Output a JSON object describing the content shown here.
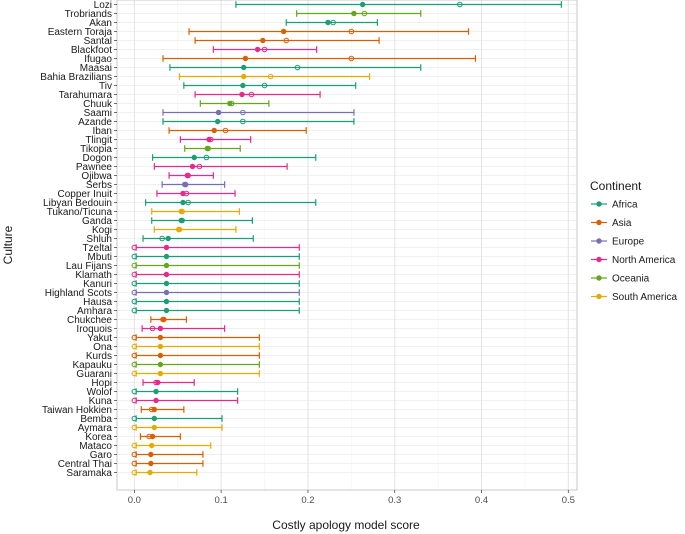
{
  "chart_data": {
    "type": "scatter",
    "xlabel": "Costly apology model score",
    "ylabel": "Culture",
    "xlim": [
      -0.02,
      0.51
    ],
    "xticks": [
      "0.0",
      "0.1",
      "0.2",
      "0.3",
      "0.4",
      "0.5"
    ],
    "xtick_values": [
      0.0,
      0.1,
      0.2,
      0.3,
      0.4,
      0.5
    ],
    "grid": true,
    "legend": {
      "title": "Continent",
      "placement": "right",
      "entries": [
        {
          "name": "Africa",
          "color": "#1b9e77"
        },
        {
          "name": "Asia",
          "color": "#d95f02"
        },
        {
          "name": "Europe",
          "color": "#7570b3"
        },
        {
          "name": "North America",
          "color": "#e7298a"
        },
        {
          "name": "Oceania",
          "color": "#66a61e"
        },
        {
          "name": "South America",
          "color": "#e6ab02"
        }
      ]
    },
    "cultures": [
      {
        "name": "Lozi",
        "continent": "Africa",
        "estimate": 0.263,
        "lo": 0.117,
        "hi": 0.492,
        "open": 0.375
      },
      {
        "name": "Trobriands",
        "continent": "Oceania",
        "estimate": 0.253,
        "lo": 0.187,
        "hi": 0.33,
        "open": 0.265
      },
      {
        "name": "Akan",
        "continent": "Africa",
        "estimate": 0.223,
        "lo": 0.175,
        "hi": 0.28,
        "open": 0.229
      },
      {
        "name": "Eastern Toraja",
        "continent": "Asia",
        "estimate": 0.172,
        "lo": 0.063,
        "hi": 0.385,
        "open": 0.25
      },
      {
        "name": "Santal",
        "continent": "Asia",
        "estimate": 0.148,
        "lo": 0.07,
        "hi": 0.282,
        "open": 0.175
      },
      {
        "name": "Blackfoot",
        "continent": "North America",
        "estimate": 0.142,
        "lo": 0.091,
        "hi": 0.21,
        "open": 0.15
      },
      {
        "name": "Ifugao",
        "continent": "Asia",
        "estimate": 0.128,
        "lo": 0.033,
        "hi": 0.393,
        "open": 0.25
      },
      {
        "name": "Maasai",
        "continent": "Africa",
        "estimate": 0.126,
        "lo": 0.041,
        "hi": 0.33,
        "open": 0.188
      },
      {
        "name": "Bahia Brazilians",
        "continent": "South America",
        "estimate": 0.126,
        "lo": 0.052,
        "hi": 0.271,
        "open": 0.157
      },
      {
        "name": "Tiv",
        "continent": "Africa",
        "estimate": 0.125,
        "lo": 0.057,
        "hi": 0.255,
        "open": 0.15
      },
      {
        "name": "Tarahumara",
        "continent": "North America",
        "estimate": 0.124,
        "lo": 0.07,
        "hi": 0.214,
        "open": 0.135
      },
      {
        "name": "Chuuk",
        "continent": "Oceania",
        "estimate": 0.11,
        "lo": 0.076,
        "hi": 0.155,
        "open": 0.112
      },
      {
        "name": "Saami",
        "continent": "Europe",
        "estimate": 0.097,
        "lo": 0.033,
        "hi": 0.253,
        "open": 0.125
      },
      {
        "name": "Azande",
        "continent": "Africa",
        "estimate": 0.096,
        "lo": 0.033,
        "hi": 0.253,
        "open": 0.125
      },
      {
        "name": "Iban",
        "continent": "Asia",
        "estimate": 0.092,
        "lo": 0.04,
        "hi": 0.198,
        "open": 0.105
      },
      {
        "name": "Tlingit",
        "continent": "North America",
        "estimate": 0.086,
        "lo": 0.053,
        "hi": 0.134,
        "open": 0.088
      },
      {
        "name": "Tikopia",
        "continent": "Oceania",
        "estimate": 0.084,
        "lo": 0.058,
        "hi": 0.122,
        "open": 0.085
      },
      {
        "name": "Dogon",
        "continent": "Africa",
        "estimate": 0.069,
        "lo": 0.021,
        "hi": 0.209,
        "open": 0.083
      },
      {
        "name": "Pawnee",
        "continent": "North America",
        "estimate": 0.067,
        "lo": 0.023,
        "hi": 0.176,
        "open": 0.075
      },
      {
        "name": "Ojibwa",
        "continent": "North America",
        "estimate": 0.061,
        "lo": 0.04,
        "hi": 0.091,
        "open": 0.062
      },
      {
        "name": "Serbs",
        "continent": "Europe",
        "estimate": 0.058,
        "lo": 0.032,
        "hi": 0.104,
        "open": 0.059
      },
      {
        "name": "Copper Inuit",
        "continent": "North America",
        "estimate": 0.056,
        "lo": 0.026,
        "hi": 0.116,
        "open": 0.06
      },
      {
        "name": "Libyan Bedouin",
        "continent": "Africa",
        "estimate": 0.056,
        "lo": 0.013,
        "hi": 0.209,
        "open": 0.062
      },
      {
        "name": "Tukano/Ticuna",
        "continent": "South America",
        "estimate": 0.054,
        "lo": 0.02,
        "hi": 0.121,
        "open": 0.055
      },
      {
        "name": "Ganda",
        "continent": "Africa",
        "estimate": 0.054,
        "lo": 0.02,
        "hi": 0.136,
        "open": 0.055
      },
      {
        "name": "Kogi",
        "continent": "South America",
        "estimate": 0.051,
        "lo": 0.023,
        "hi": 0.117,
        "open": 0.052
      },
      {
        "name": "Shluh",
        "continent": "Africa",
        "estimate": 0.039,
        "lo": 0.01,
        "hi": 0.137,
        "open": 0.032
      },
      {
        "name": "Tzeltal",
        "continent": "North America",
        "estimate": 0.037,
        "lo": 0.002,
        "hi": 0.19,
        "open": 0.0
      },
      {
        "name": "Mbuti",
        "continent": "Africa",
        "estimate": 0.037,
        "lo": 0.002,
        "hi": 0.19,
        "open": 0.0
      },
      {
        "name": "Lau Fijans",
        "continent": "Oceania",
        "estimate": 0.037,
        "lo": 0.002,
        "hi": 0.19,
        "open": 0.0
      },
      {
        "name": "Klamath",
        "continent": "North America",
        "estimate": 0.037,
        "lo": 0.002,
        "hi": 0.19,
        "open": 0.0
      },
      {
        "name": "Kanuri",
        "continent": "Africa",
        "estimate": 0.037,
        "lo": 0.002,
        "hi": 0.19,
        "open": 0.0
      },
      {
        "name": "Highland Scots",
        "continent": "Europe",
        "estimate": 0.037,
        "lo": 0.002,
        "hi": 0.19,
        "open": 0.0
      },
      {
        "name": "Hausa",
        "continent": "Africa",
        "estimate": 0.037,
        "lo": 0.002,
        "hi": 0.19,
        "open": 0.0
      },
      {
        "name": "Amhara",
        "continent": "Africa",
        "estimate": 0.037,
        "lo": 0.002,
        "hi": 0.19,
        "open": 0.0
      },
      {
        "name": "Chukchee",
        "continent": "Asia",
        "estimate": 0.034,
        "lo": 0.019,
        "hi": 0.06,
        "open": 0.033
      },
      {
        "name": "Iroquois",
        "continent": "North America",
        "estimate": 0.03,
        "lo": 0.009,
        "hi": 0.104,
        "open": 0.021
      },
      {
        "name": "Yakut",
        "continent": "Asia",
        "estimate": 0.03,
        "lo": 0.002,
        "hi": 0.144,
        "open": 0.0
      },
      {
        "name": "Ona",
        "continent": "South America",
        "estimate": 0.03,
        "lo": 0.002,
        "hi": 0.144,
        "open": 0.0
      },
      {
        "name": "Kurds",
        "continent": "Asia",
        "estimate": 0.03,
        "lo": 0.002,
        "hi": 0.144,
        "open": 0.0
      },
      {
        "name": "Kapauku",
        "continent": "Oceania",
        "estimate": 0.03,
        "lo": 0.002,
        "hi": 0.144,
        "open": 0.0
      },
      {
        "name": "Guarani",
        "continent": "South America",
        "estimate": 0.03,
        "lo": 0.002,
        "hi": 0.144,
        "open": 0.0
      },
      {
        "name": "Hopi",
        "continent": "North America",
        "estimate": 0.027,
        "lo": 0.01,
        "hi": 0.069,
        "open": 0.025
      },
      {
        "name": "Wolof",
        "continent": "Africa",
        "estimate": 0.025,
        "lo": 0.002,
        "hi": 0.119,
        "open": 0.0
      },
      {
        "name": "Kuna",
        "continent": "North America",
        "estimate": 0.025,
        "lo": 0.002,
        "hi": 0.119,
        "open": 0.0
      },
      {
        "name": "Taiwan Hokkien",
        "continent": "Asia",
        "estimate": 0.023,
        "lo": 0.008,
        "hi": 0.057,
        "open": 0.02
      },
      {
        "name": "Bemba",
        "continent": "Africa",
        "estimate": 0.023,
        "lo": 0.002,
        "hi": 0.101,
        "open": 0.0
      },
      {
        "name": "Aymara",
        "continent": "South America",
        "estimate": 0.023,
        "lo": 0.002,
        "hi": 0.101,
        "open": 0.0
      },
      {
        "name": "Korea",
        "continent": "Asia",
        "estimate": 0.021,
        "lo": 0.007,
        "hi": 0.053,
        "open": 0.017
      },
      {
        "name": "Mataco",
        "continent": "South America",
        "estimate": 0.02,
        "lo": 0.002,
        "hi": 0.088,
        "open": 0.0
      },
      {
        "name": "Garo",
        "continent": "Asia",
        "estimate": 0.019,
        "lo": 0.002,
        "hi": 0.079,
        "open": 0.0
      },
      {
        "name": "Central Thai",
        "continent": "Asia",
        "estimate": 0.019,
        "lo": 0.002,
        "hi": 0.079,
        "open": 0.0
      },
      {
        "name": "Saramaka",
        "continent": "South America",
        "estimate": 0.018,
        "lo": 0.002,
        "hi": 0.072,
        "open": 0.0
      }
    ]
  }
}
